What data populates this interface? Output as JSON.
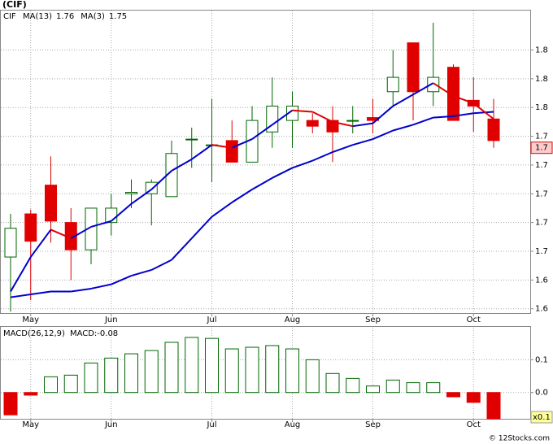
{
  "title": "(CIF)",
  "footer": "© 12Stocks.com",
  "chart_data": [
    {
      "type": "candlestick",
      "categories": [
        null,
        "May",
        null,
        null,
        null,
        "Jun",
        null,
        null,
        null,
        null,
        "Jul",
        null,
        null,
        null,
        "Aug",
        null,
        null,
        null,
        "Sep",
        null,
        null,
        null,
        null,
        "Oct",
        null
      ],
      "candles": {
        "name": "CIF",
        "up_color": "#006600",
        "down_color": "#e00000",
        "open": [
          1.656,
          1.686,
          1.706,
          1.68,
          1.661,
          1.68,
          1.7,
          1.7,
          1.698,
          1.738,
          1.734,
          1.737,
          1.722,
          1.743,
          1.751,
          1.751,
          1.751,
          1.751,
          1.753,
          1.771,
          1.805,
          1.771,
          1.788,
          1.765,
          1.752
        ],
        "high": [
          1.686,
          1.689,
          1.726,
          1.69,
          1.69,
          1.7,
          1.71,
          1.71,
          1.737,
          1.746,
          1.766,
          1.751,
          1.761,
          1.781,
          1.771,
          1.756,
          1.761,
          1.761,
          1.766,
          1.8,
          1.805,
          1.819,
          1.79,
          1.781,
          1.766
        ],
        "low": [
          1.618,
          1.626,
          1.666,
          1.64,
          1.651,
          1.671,
          1.69,
          1.678,
          1.698,
          1.718,
          1.708,
          1.722,
          1.722,
          1.732,
          1.732,
          1.742,
          1.722,
          1.742,
          1.742,
          1.761,
          1.751,
          1.761,
          1.751,
          1.743,
          1.732
        ],
        "close": [
          1.676,
          1.667,
          1.681,
          1.661,
          1.69,
          1.69,
          1.701,
          1.708,
          1.728,
          1.738,
          1.734,
          1.722,
          1.751,
          1.761,
          1.761,
          1.747,
          1.743,
          1.751,
          1.751,
          1.781,
          1.771,
          1.781,
          1.751,
          1.761,
          1.737
        ]
      },
      "series": [
        {
          "name": "MA(13)",
          "last_value": 1.76,
          "color": "#0000cc",
          "values": [
            1.628,
            1.63,
            1.632,
            1.632,
            1.634,
            1.637,
            1.643,
            1.647,
            1.654,
            1.669,
            1.684,
            1.694,
            1.703,
            1.711,
            1.718,
            1.723,
            1.729,
            1.734,
            1.738,
            1.744,
            1.748,
            1.753,
            1.754,
            1.756,
            1.757
          ]
        },
        {
          "name": "MA(3)",
          "last_value": 1.75,
          "color": "#0000cc",
          "down_color": "#e00000",
          "values": [
            1.632,
            1.656,
            1.675,
            1.669,
            1.677,
            1.681,
            1.693,
            1.703,
            1.716,
            1.724,
            1.734,
            1.732,
            1.738,
            1.748,
            1.758,
            1.757,
            1.75,
            1.747,
            1.749,
            1.761,
            1.769,
            1.777,
            1.768,
            1.763,
            1.752
          ]
        }
      ],
      "ylim": [
        1.617,
        1.828
      ],
      "yticks": [
        {
          "value": 1.62,
          "label": "1.6"
        },
        {
          "value": 1.64,
          "label": "1.6"
        },
        {
          "value": 1.66,
          "label": "1.7"
        },
        {
          "value": 1.68,
          "label": "1.7"
        },
        {
          "value": 1.7,
          "label": "1.7"
        },
        {
          "value": 1.72,
          "label": "1.7"
        },
        {
          "value": 1.74,
          "label": "1.7"
        },
        {
          "value": 1.76,
          "label": "1.8"
        },
        {
          "value": 1.78,
          "label": "1.8"
        },
        {
          "value": 1.8,
          "label": "1.8"
        }
      ],
      "price_marker": {
        "value": 1.732,
        "label": "1.7"
      },
      "grid": true
    },
    {
      "type": "bar",
      "name": "MACD(26,12,9)",
      "value_label": "MACD:-0.08",
      "up_color": "#006600",
      "down_color": "#e00000",
      "categories": [
        null,
        "May",
        null,
        null,
        null,
        "Jun",
        null,
        null,
        null,
        null,
        "Jul",
        null,
        null,
        null,
        "Aug",
        null,
        null,
        null,
        "Sep",
        null,
        null,
        null,
        null,
        "Oct",
        null
      ],
      "values": [
        -0.068,
        -0.008,
        0.048,
        0.053,
        0.09,
        0.105,
        0.118,
        0.128,
        0.153,
        0.168,
        0.165,
        0.133,
        0.138,
        0.143,
        0.133,
        0.1,
        0.058,
        0.043,
        0.02,
        0.038,
        0.03,
        0.03,
        -0.013,
        -0.03,
        -0.08
      ],
      "ylim": [
        -0.08,
        0.2
      ],
      "yticks": [
        0.1,
        {
          "value": 0,
          "label": "0.0"
        }
      ],
      "marker": {
        "value": -0.075,
        "label": "x0.1"
      },
      "grid": true
    }
  ]
}
